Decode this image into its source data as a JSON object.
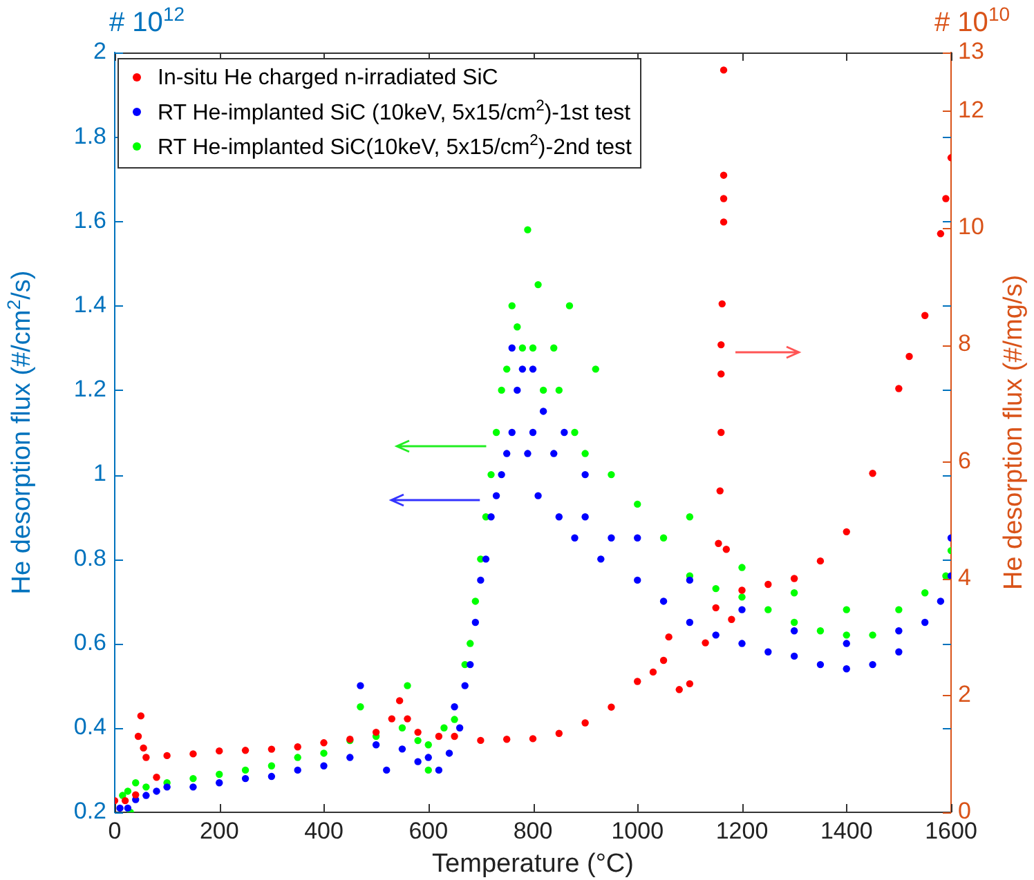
{
  "chart_data": {
    "type": "scatter",
    "xlabel": "Temperature (°C)",
    "ylabel": "He desorption flux (#/cm$^{2}$/s)",
    "y2label": "He desorption flux (#/mg/s)",
    "annotations": [
      "# 10$^{12}$",
      "# 10$^{10}$"
    ],
    "xlim": [
      0,
      1600
    ],
    "xticks": [
      0,
      200,
      400,
      600,
      800,
      1000,
      1200,
      1400,
      1600
    ],
    "ylim": [
      0.2,
      2
    ],
    "yticks": [
      0.2,
      0.4,
      0.6,
      0.8,
      1,
      1.2,
      1.4,
      1.6,
      1.8,
      2
    ],
    "y2lim": [
      0,
      13
    ],
    "y2ticks": [
      0,
      2,
      4,
      6,
      8,
      10,
      12,
      13
    ],
    "legend": "top left",
    "marker": "circle",
    "grid": false,
    "series": [
      {
        "name": "In-situ He charged n-irradiated SiC",
        "color": "#ff0000",
        "axis": "y2",
        "x": [
          0,
          20,
          40,
          45,
          50,
          55,
          60,
          80,
          100,
          150,
          200,
          250,
          300,
          350,
          400,
          450,
          500,
          530,
          545,
          560,
          580,
          620,
          650,
          700,
          750,
          800,
          850,
          900,
          950,
          1000,
          1030,
          1050,
          1060,
          1080,
          1100,
          1130,
          1150,
          1155,
          1158,
          1160,
          1160,
          1160,
          1162,
          1165,
          1165,
          1165,
          1165,
          1170,
          1180,
          1200,
          1250,
          1300,
          1350,
          1400,
          1450,
          1500,
          1520,
          1550,
          1580,
          1590,
          1600
        ],
        "values": [
          0.2,
          0.2,
          0.3,
          1.3,
          1.65,
          1.1,
          0.94,
          0.6,
          0.97,
          1.0,
          1.05,
          1.06,
          1.08,
          1.12,
          1.19,
          1.25,
          1.37,
          1.6,
          1.91,
          1.6,
          1.37,
          1.3,
          1.3,
          1.23,
          1.25,
          1.26,
          1.35,
          1.53,
          1.8,
          2.24,
          2.4,
          2.6,
          3.0,
          2.1,
          2.2,
          2.9,
          3.5,
          4.6,
          5.5,
          6.5,
          7.5,
          8.0,
          8.7,
          10.1,
          10.5,
          10.9,
          12.7,
          4.5,
          3.3,
          3.8,
          3.9,
          4.0,
          4.3,
          4.8,
          5.8,
          7.25,
          7.8,
          8.5,
          9.9,
          10.5,
          11.2
        ]
      },
      {
        "name": "RT He-implanted SiC (10keV, 5x15/cm$^{2}$)-1st test",
        "color": "#0000ff",
        "x": [
          10,
          25,
          40,
          60,
          80,
          100,
          150,
          200,
          250,
          300,
          350,
          400,
          450,
          470,
          500,
          520,
          550,
          580,
          600,
          620,
          640,
          650,
          660,
          670,
          680,
          690,
          700,
          710,
          720,
          730,
          740,
          750,
          760,
          760,
          770,
          780,
          790,
          800,
          800,
          810,
          820,
          840,
          850,
          860,
          880,
          900,
          900,
          930,
          950,
          1000,
          1000,
          1050,
          1100,
          1100,
          1150,
          1200,
          1200,
          1250,
          1300,
          1300,
          1350,
          1400,
          1400,
          1450,
          1500,
          1500,
          1550,
          1580,
          1600,
          1600
        ],
        "values": [
          0.21,
          0.21,
          0.23,
          0.24,
          0.25,
          0.26,
          0.26,
          0.27,
          0.28,
          0.285,
          0.3,
          0.31,
          0.33,
          0.5,
          0.36,
          0.3,
          0.35,
          0.32,
          0.33,
          0.3,
          0.34,
          0.45,
          0.4,
          0.5,
          0.55,
          0.65,
          0.75,
          0.8,
          0.9,
          0.95,
          1.0,
          1.05,
          1.1,
          1.3,
          1.2,
          1.25,
          1.05,
          1.1,
          1.25,
          0.95,
          1.15,
          1.05,
          0.9,
          1.1,
          0.85,
          0.9,
          1.0,
          0.8,
          0.85,
          0.75,
          0.85,
          0.7,
          0.65,
          0.75,
          0.62,
          0.6,
          0.68,
          0.58,
          0.57,
          0.63,
          0.55,
          0.54,
          0.6,
          0.55,
          0.58,
          0.63,
          0.65,
          0.7,
          0.76,
          0.85
        ]
      },
      {
        "name": "RT He-implanted SiC(10keV, 5x15/cm$^{2}$)-2nd test",
        "color": "#00ff00",
        "x": [
          15,
          25,
          30,
          40,
          60,
          100,
          150,
          200,
          250,
          300,
          350,
          400,
          450,
          470,
          500,
          550,
          560,
          580,
          600,
          600,
          630,
          650,
          670,
          680,
          690,
          700,
          710,
          720,
          730,
          740,
          750,
          760,
          770,
          780,
          790,
          800,
          810,
          820,
          840,
          850,
          870,
          880,
          900,
          920,
          950,
          1000,
          1050,
          1100,
          1100,
          1150,
          1200,
          1200,
          1250,
          1300,
          1300,
          1350,
          1400,
          1400,
          1450,
          1500,
          1550,
          1590,
          1600
        ],
        "values": [
          0.24,
          0.25,
          0.2,
          0.27,
          0.26,
          0.27,
          0.28,
          0.29,
          0.3,
          0.31,
          0.33,
          0.34,
          0.37,
          0.45,
          0.38,
          0.4,
          0.5,
          0.37,
          0.36,
          0.3,
          0.4,
          0.42,
          0.55,
          0.6,
          0.7,
          0.8,
          0.9,
          1.0,
          1.1,
          1.2,
          1.25,
          1.4,
          1.35,
          1.3,
          1.58,
          1.3,
          1.45,
          1.2,
          1.3,
          1.2,
          1.4,
          1.1,
          1.05,
          1.25,
          1.0,
          0.93,
          0.85,
          0.76,
          0.9,
          0.73,
          0.71,
          0.78,
          0.68,
          0.65,
          0.72,
          0.63,
          0.62,
          0.68,
          0.62,
          0.68,
          0.72,
          0.76,
          0.82
        ]
      }
    ]
  }
}
